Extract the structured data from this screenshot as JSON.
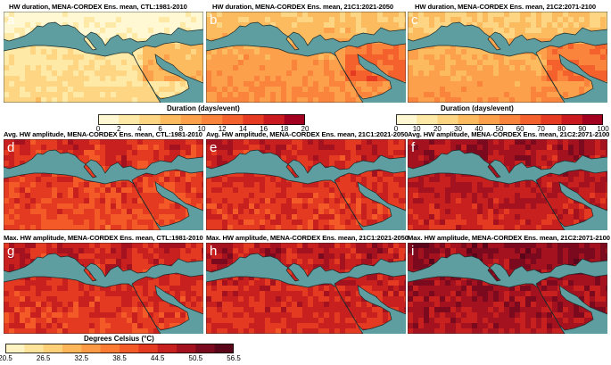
{
  "panels": [
    {
      "label": "a",
      "title": "HW duration, MENA-CORDEX Ens. mean, CTL:1981-2010",
      "scale": "duration20",
      "level": 0.15
    },
    {
      "label": "b",
      "title": "HW duration, MENA-CORDEX Ens. mean, 21C1:2021-2050",
      "scale": "duration20",
      "level": 0.42
    },
    {
      "label": "c",
      "title": "HW duration, MENA-CORDEX Ens. mean, 21C2:2071-2100",
      "scale": "duration100",
      "level": 0.38
    },
    {
      "label": "d",
      "title": "Avg. HW amplitude, MENA-CORDEX Ens. mean, CTL:1981-2010",
      "scale": "degrees",
      "level": 0.62
    },
    {
      "label": "e",
      "title": "Avg. HW amplitude, MENA-CORDEX Ens. mean, 21C1:2021-2050",
      "scale": "degrees",
      "level": 0.66
    },
    {
      "label": "f",
      "title": "Avg. HW amplitude, MENA-CORDEX Ens. mean, 21C2:2071-2100",
      "scale": "degrees",
      "level": 0.74
    },
    {
      "label": "g",
      "title": "Max. HW amplitude, MENA-CORDEX Ens. mean, CTL:1981-2010",
      "scale": "degrees",
      "level": 0.66
    },
    {
      "label": "h",
      "title": "Max. HW amplitude, MENA-CORDEX Ens. mean, 21C1:2021-2050",
      "scale": "degrees",
      "level": 0.7
    },
    {
      "label": "i",
      "title": "Max. HW amplitude, MENA-CORDEX Ens. mean, 21C2:2071-2100",
      "scale": "degrees",
      "level": 0.8
    }
  ],
  "colorbars": {
    "duration20": {
      "title": "Duration (days/event)",
      "ticks": [
        "0",
        "2",
        "4",
        "6",
        "8",
        "10",
        "12",
        "14",
        "16",
        "18",
        "20"
      ],
      "colors": [
        "#fff8d3",
        "#fee9a6",
        "#fed582",
        "#fdbb5f",
        "#fca04b",
        "#fb843c",
        "#f4612d",
        "#e63b22",
        "#ca1a1f",
        "#a3001f"
      ]
    },
    "duration100": {
      "title": "Duration (days/event)",
      "ticks": [
        "0",
        "10",
        "20",
        "30",
        "40",
        "50",
        "60",
        "70",
        "80",
        "90",
        "100"
      ],
      "colors": [
        "#fff8d3",
        "#fee9a6",
        "#fed582",
        "#fdbb5f",
        "#fca04b",
        "#fb843c",
        "#f4612d",
        "#e63b22",
        "#ca1a1f",
        "#a3001f"
      ]
    },
    "degrees": {
      "title": "Degrees Celsius (°C)",
      "ticks": [
        "20.5",
        "26.5",
        "32.5",
        "38.5",
        "44.5",
        "50.5",
        "56.5"
      ],
      "colors": [
        "#fff3c2",
        "#fee39a",
        "#fed078",
        "#fdb75a",
        "#fd9a45",
        "#fb7a34",
        "#f35a28",
        "#e43a22",
        "#c8201f",
        "#a4121f",
        "#7c0a1f",
        "#5a0519"
      ]
    }
  },
  "map_colors": {
    "sea": "#5f9ea0",
    "coast": "#1a2a2a"
  }
}
